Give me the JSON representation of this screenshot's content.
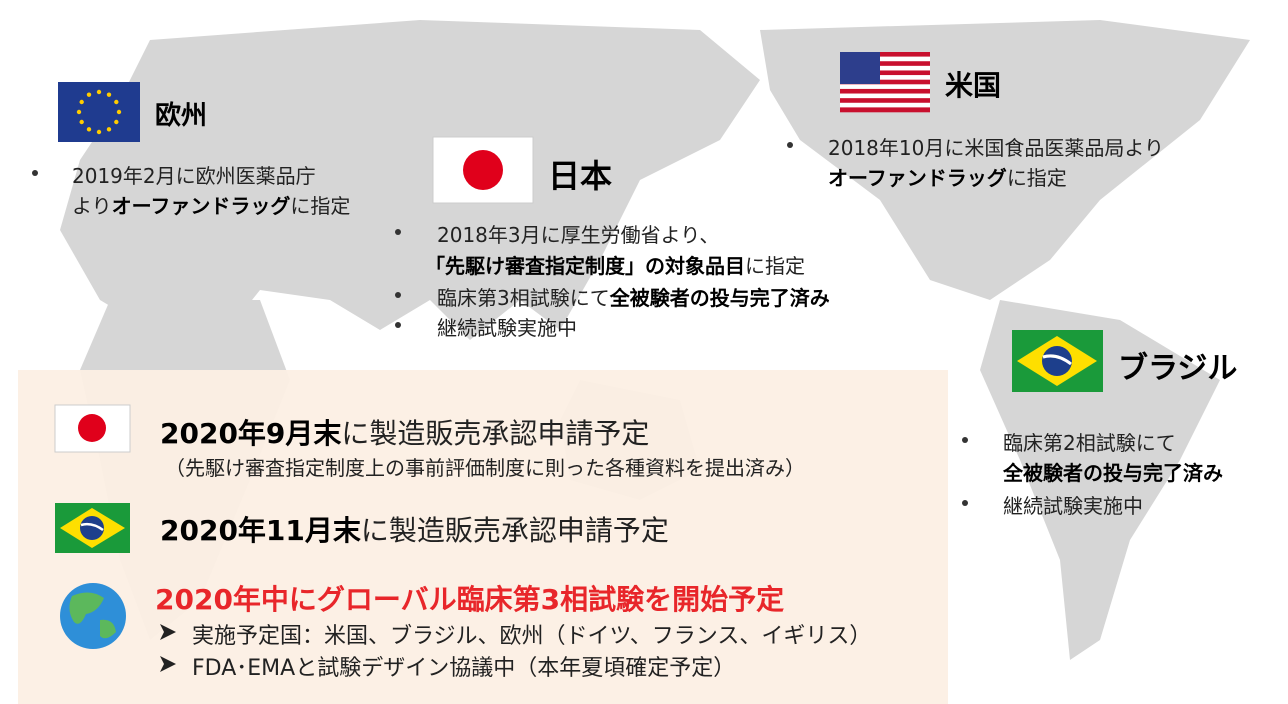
{
  "regions": [
    {
      "name": "欧州",
      "bullets": [
        [
          [
            {
              "text": "2019年2月に欧州医薬品庁"
            }
          ],
          [
            {
              "text": "より"
            },
            {
              "text": "オーファンドラッグ",
              "bold": true
            },
            {
              "text": "に指定"
            }
          ]
        ]
      ]
    },
    {
      "name": "日本",
      "bullets": [
        [
          [
            {
              "text": "2018年3月に厚生労働省より、"
            }
          ],
          [
            {
              "text": "「先駆け審査指定制度」の対象品目",
              "bold": true
            },
            {
              "text": "に指定"
            }
          ]
        ],
        [
          [
            {
              "text": "臨床第3相試験にて"
            },
            {
              "text": "全被験者の投与完了済み",
              "bold": true
            }
          ]
        ],
        [
          [
            {
              "text": "継続試験実施中"
            }
          ]
        ]
      ]
    },
    {
      "name": "米国",
      "bullets": [
        [
          [
            {
              "text": "2018年10月に米国食品医薬品局より"
            }
          ],
          [
            {
              "text": "オーファンドラッグ",
              "bold": true
            },
            {
              "text": "に指定"
            }
          ]
        ]
      ]
    },
    {
      "name": "ブラジル",
      "bullets": [
        [
          [
            {
              "text": "臨床第2相試験にて"
            }
          ],
          [
            {
              "text": "全被験者の投与完了済み",
              "bold": true
            }
          ]
        ],
        [
          [
            {
              "text": "継続試験実施中"
            }
          ]
        ]
      ]
    }
  ],
  "plans": [
    {
      "lines": [
        [
          {
            "text": "2020年9月末",
            "bold": true
          },
          {
            "text": "に製造販売承認申請予定"
          }
        ]
      ],
      "note": "（先駆け審査指定制度上の事前評価制度に則った各種資料を提出済み）"
    },
    {
      "lines": [
        [
          {
            "text": "2020年11月末",
            "bold": true
          },
          {
            "text": "に製造販売承認申請予定"
          }
        ]
      ]
    }
  ],
  "global": {
    "title": "2020年中にグローバル臨床第3相試験を開始予定",
    "items": [
      "実施予定国：米国、ブラジル、欧州（ドイツ、フランス、イギリス）",
      "FDA･EMAと試験デザイン協議中（本年夏頃確定予定）"
    ]
  }
}
